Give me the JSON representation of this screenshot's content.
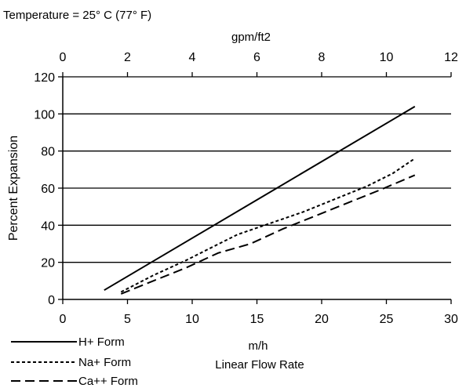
{
  "chart_data": {
    "type": "line",
    "title": "Temperature = 25° C (77° F)",
    "xlabel": "m/h",
    "xlabel_sub": "Linear Flow Rate",
    "x_top_label": "gpm/ft2",
    "ylabel": "Percent Expansion",
    "xlim": [
      0,
      30
    ],
    "x_top_lim": [
      0,
      12
    ],
    "ylim": [
      0,
      120
    ],
    "x_ticks": [
      0,
      5,
      10,
      15,
      20,
      25,
      30
    ],
    "x_top_ticks": [
      0,
      2,
      4,
      6,
      8,
      10,
      12
    ],
    "y_ticks": [
      0,
      20,
      40,
      60,
      80,
      100,
      120
    ],
    "grid": "horizontal",
    "legend_position": "bottom-left",
    "series": [
      {
        "name": "H+ Form",
        "style": "solid",
        "x": [
          3.2,
          27.2
        ],
        "y": [
          5,
          104
        ]
      },
      {
        "name": "Na+ Form",
        "style": "dotted",
        "x": [
          4.5,
          7,
          9.5,
          11.5,
          13.5,
          16,
          18.5,
          21,
          23.5,
          25.5,
          27.2
        ],
        "y": [
          4,
          13,
          21,
          28,
          35,
          41,
          47,
          54,
          61,
          68,
          76
        ]
      },
      {
        "name": "Ca++ Form",
        "style": "dashed",
        "x": [
          4.5,
          7,
          9.5,
          12,
          14.5,
          17,
          19.5,
          22,
          24.5,
          27.2
        ],
        "y": [
          3,
          10,
          17,
          25,
          30,
          38,
          45,
          52,
          59,
          67
        ]
      }
    ]
  }
}
